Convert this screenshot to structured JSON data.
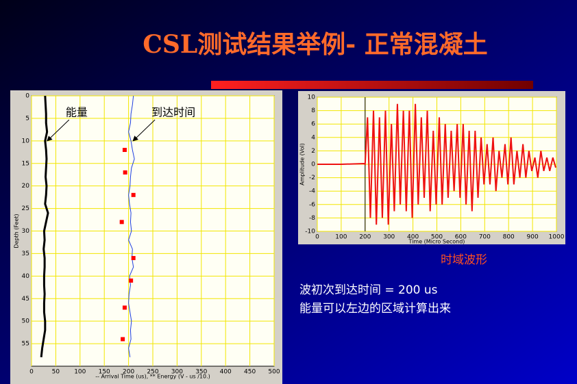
{
  "title": "CSL测试结果举例- 正常混凝土",
  "caption": "时域波形",
  "notes": [
    "波初次到达时间 = 200 us",
    "能量可以左边的区域计算出来"
  ],
  "chart_data": [
    {
      "type": "line",
      "xlabel": "-- Arrival Time (us), ** Energy (V - us /10.)",
      "ylabel": "Depth (Feet)",
      "xlim": [
        0,
        500
      ],
      "xticks": [
        0,
        50,
        100,
        150,
        200,
        250,
        300,
        350,
        400,
        450,
        500
      ],
      "ylim": [
        0,
        60
      ],
      "yticks": [
        0,
        5,
        10,
        15,
        20,
        25,
        30,
        35,
        40,
        45,
        50,
        55
      ],
      "y_inverted": true,
      "grid": true,
      "grid_color": "#f2e600",
      "series": [
        {
          "name": "能量",
          "color": "#000000",
          "marker": "dot",
          "y": [
            0,
            2,
            4,
            6,
            8,
            10,
            12,
            14,
            16,
            18,
            20,
            22,
            24,
            26,
            28,
            30,
            32,
            34,
            36,
            38,
            40,
            42,
            44,
            46,
            48,
            50,
            52,
            54,
            56,
            58
          ],
          "values": [
            28,
            29,
            30,
            30,
            32,
            28,
            30,
            31,
            30,
            29,
            31,
            30,
            28,
            34,
            30,
            26,
            27,
            25,
            27,
            27,
            26,
            26,
            27,
            26,
            26,
            28,
            28,
            25,
            22,
            20
          ]
        },
        {
          "name": "到达时间",
          "color": "#2040e0",
          "y": [
            0,
            2,
            4,
            6,
            8,
            10,
            12,
            14,
            16,
            18,
            20,
            22,
            24,
            26,
            28,
            30,
            32,
            34,
            36,
            38,
            40,
            42,
            44,
            46,
            48,
            50,
            52,
            54,
            56,
            58
          ],
          "values": [
            210,
            208,
            205,
            204,
            200,
            205,
            208,
            212,
            206,
            204,
            203,
            200,
            202,
            205,
            204,
            206,
            200,
            208,
            207,
            210,
            202,
            204,
            201,
            200,
            203,
            206,
            204,
            205,
            200,
            203
          ]
        },
        {
          "color": "#ff0000",
          "marker": "square",
          "y": [
            12,
            17,
            22,
            28,
            36,
            41,
            47,
            54
          ],
          "values": [
            192,
            193,
            210,
            186,
            210,
            205,
            192,
            188
          ]
        }
      ]
    },
    {
      "type": "line",
      "xlabel": "Time (Micro Second)",
      "ylabel": "Amplitude (Vol)",
      "xlim": [
        0,
        1000
      ],
      "xticks": [
        0,
        100,
        200,
        300,
        400,
        500,
        600,
        700,
        800,
        900,
        1000
      ],
      "ylim": [
        -10,
        10
      ],
      "yticks": [
        -10,
        -8,
        -6,
        -4,
        -2,
        0,
        2,
        4,
        6,
        8,
        10
      ],
      "grid": true,
      "grid_color": "#f2e600",
      "vline": 200,
      "x": [
        0,
        100,
        195,
        200,
        210,
        222,
        235,
        247,
        260,
        272,
        285,
        297,
        310,
        322,
        335,
        347,
        360,
        372,
        385,
        397,
        410,
        422,
        435,
        447,
        460,
        472,
        485,
        497,
        510,
        522,
        535,
        547,
        560,
        572,
        585,
        597,
        610,
        622,
        635,
        647,
        660,
        672,
        685,
        697,
        710,
        722,
        735,
        747,
        760,
        772,
        785,
        797,
        810,
        822,
        835,
        847,
        860,
        872,
        885,
        897,
        910,
        922,
        935,
        947,
        960,
        972,
        985,
        997
      ],
      "series": [
        {
          "color": "#ee1111",
          "values": [
            0,
            0,
            0.1,
            0,
            7,
            -8,
            8,
            -9,
            7,
            -8,
            8,
            -9,
            6,
            -7,
            9,
            -6,
            8,
            -7,
            8,
            -8,
            9,
            -6,
            7,
            -5,
            8,
            -7,
            5,
            -6,
            7,
            -6,
            6,
            -5,
            5,
            -4,
            6,
            -5,
            6,
            -6,
            5,
            -7,
            5,
            -5,
            4,
            -3,
            3,
            -3,
            4,
            -4,
            2,
            -2,
            3,
            -3,
            4,
            -3,
            2,
            -2,
            3,
            -2,
            2,
            -1,
            1,
            -2,
            2,
            -1,
            1,
            -1,
            1,
            -0.5
          ]
        }
      ]
    }
  ]
}
